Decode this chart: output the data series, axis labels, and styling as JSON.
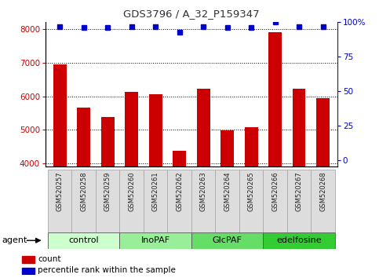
{
  "title": "GDS3796 / A_32_P159347",
  "samples": [
    "GSM520257",
    "GSM520258",
    "GSM520259",
    "GSM520260",
    "GSM520261",
    "GSM520262",
    "GSM520263",
    "GSM520264",
    "GSM520265",
    "GSM520266",
    "GSM520267",
    "GSM520268"
  ],
  "counts": [
    6950,
    5650,
    5380,
    6120,
    6060,
    4380,
    6220,
    4980,
    5080,
    7900,
    6220,
    5950
  ],
  "percentile": [
    97,
    96,
    96,
    97,
    97,
    93,
    97,
    96,
    96,
    100,
    97,
    97
  ],
  "bar_color": "#cc0000",
  "dot_color": "#0000cc",
  "ylim_left": [
    3900,
    8200
  ],
  "ylim_right": [
    -4.76,
    100
  ],
  "yticks_left": [
    4000,
    5000,
    6000,
    7000,
    8000
  ],
  "yticks_right": [
    0,
    25,
    50,
    75,
    100
  ],
  "yticklabels_right": [
    "0",
    "25",
    "50",
    "75",
    "100%"
  ],
  "groups": [
    {
      "label": "control",
      "start": 0,
      "end": 3,
      "color": "#ccffcc"
    },
    {
      "label": "InoPAF",
      "start": 3,
      "end": 6,
      "color": "#99ee99"
    },
    {
      "label": "GlcPAF",
      "start": 6,
      "end": 9,
      "color": "#66dd66"
    },
    {
      "label": "edelfosine",
      "start": 9,
      "end": 12,
      "color": "#33cc33"
    }
  ],
  "agent_label": "agent",
  "legend_count_label": "count",
  "legend_percentile_label": "percentile rank within the sample",
  "grid_color": "#000000",
  "tick_label_color_left": "#cc0000",
  "tick_label_color_right": "#0000cc",
  "title_color": "#333333",
  "bar_bottom": 3900,
  "xticklabel_bg": "#dddddd",
  "xticklabel_edge": "#aaaaaa",
  "plot_bg": "#ffffff",
  "border_color": "#333333"
}
